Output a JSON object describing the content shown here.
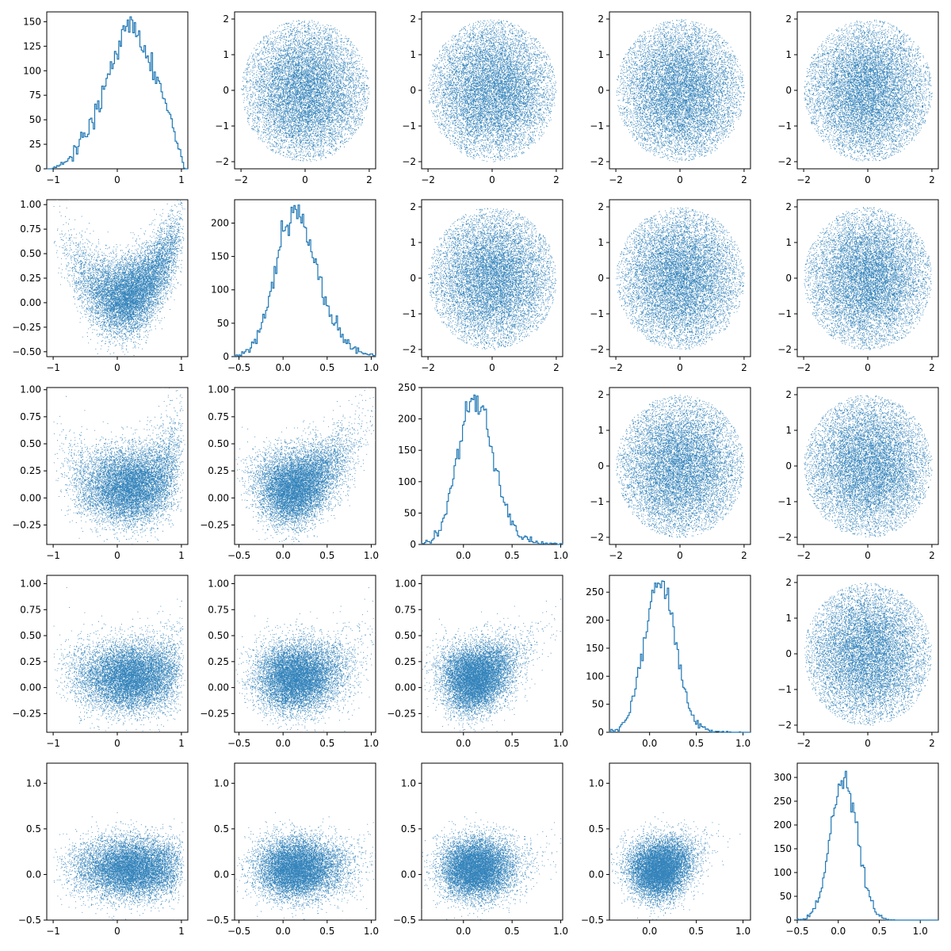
{
  "chart_data": {
    "type": "scatter",
    "title": "",
    "layout": "5x5 corner-style grid: histograms on the diagonal, scatter plots off-diagonal",
    "color": "#1f77b4",
    "grid": false,
    "legend": "none",
    "n_samples": 10000,
    "dimensions": [
      {
        "lim": [
          -1.1,
          1.1
        ],
        "ticks": [
          -1,
          0,
          1
        ],
        "tick_labels": [
          "−1",
          "0",
          "1"
        ],
        "hist_ylim": [
          0,
          160
        ],
        "hist_yticks": [
          0,
          25,
          50,
          75,
          100,
          125,
          150
        ],
        "hist_peak": 155
      },
      {
        "lim": [
          -0.55,
          1.05
        ],
        "ticks": [
          -0.5,
          0.0,
          0.5,
          1.0
        ],
        "tick_labels": [
          "−0.5",
          "0.0",
          "0.5",
          "1.0"
        ],
        "scatter_yticks": [
          -0.5,
          -0.25,
          0.0,
          0.25,
          0.5,
          0.75,
          1.0
        ],
        "scatter_ytick_labels": [
          "−0.50",
          "−0.25",
          "0.00",
          "0.25",
          "0.50",
          "0.75",
          "1.00"
        ],
        "hist_ylim": [
          0,
          235
        ],
        "hist_yticks": [
          0,
          50,
          100,
          150,
          200
        ],
        "hist_peak": 227
      },
      {
        "lim": [
          -0.43,
          1.02
        ],
        "ticks": [
          0.0,
          0.5,
          1.0
        ],
        "tick_labels": [
          "0.0",
          "0.5",
          "1.0"
        ],
        "scatter_yticks": [
          -0.25,
          0.0,
          0.25,
          0.5,
          0.75,
          1.0
        ],
        "scatter_ytick_labels": [
          "−0.25",
          "0.00",
          "0.25",
          "0.50",
          "0.75",
          "1.00"
        ],
        "hist_ylim": [
          0,
          250
        ],
        "hist_yticks": [
          0,
          50,
          100,
          150,
          200,
          250
        ],
        "hist_peak": 238
      },
      {
        "lim": [
          -0.43,
          1.08
        ],
        "ticks": [
          0.0,
          0.5,
          1.0
        ],
        "tick_labels": [
          "0.0",
          "0.5",
          "1.0"
        ],
        "scatter_yticks": [
          -0.25,
          0.0,
          0.25,
          0.5,
          0.75,
          1.0
        ],
        "scatter_ytick_labels": [
          "−0.25",
          "0.00",
          "0.25",
          "0.50",
          "0.75",
          "1.00"
        ],
        "hist_ylim": [
          0,
          280
        ],
        "hist_yticks": [
          0,
          50,
          100,
          150,
          200,
          250
        ],
        "hist_peak": 270
      },
      {
        "lim": [
          -0.5,
          1.22
        ],
        "ticks": [
          -0.5,
          0.0,
          0.5,
          1.0
        ],
        "tick_labels": [
          "−0.5",
          "0.0",
          "0.5",
          "1.0"
        ],
        "scatter_yticks": [
          -0.5,
          0.0,
          0.5,
          1.0
        ],
        "scatter_ytick_labels": [
          "−0.5",
          "0.0",
          "0.5",
          "1.0"
        ],
        "hist_ylim": [
          0,
          330
        ],
        "hist_yticks": [
          0,
          50,
          100,
          150,
          200,
          250,
          300
        ],
        "hist_peak": 313
      }
    ],
    "upper_scatter": {
      "distribution": "independent standard normal pairs clipped to radius 2",
      "xlim": [
        -2.2,
        2.2
      ],
      "ylim": [
        -2.2,
        2.2
      ],
      "xticks": [
        -2,
        0,
        2
      ],
      "xtick_labels": [
        "−2",
        "0",
        "2"
      ],
      "yticks": [
        -2,
        -1,
        0,
        1,
        2
      ],
      "ytick_labels": [
        "−2",
        "−1",
        "0",
        "1",
        "2"
      ]
    }
  }
}
